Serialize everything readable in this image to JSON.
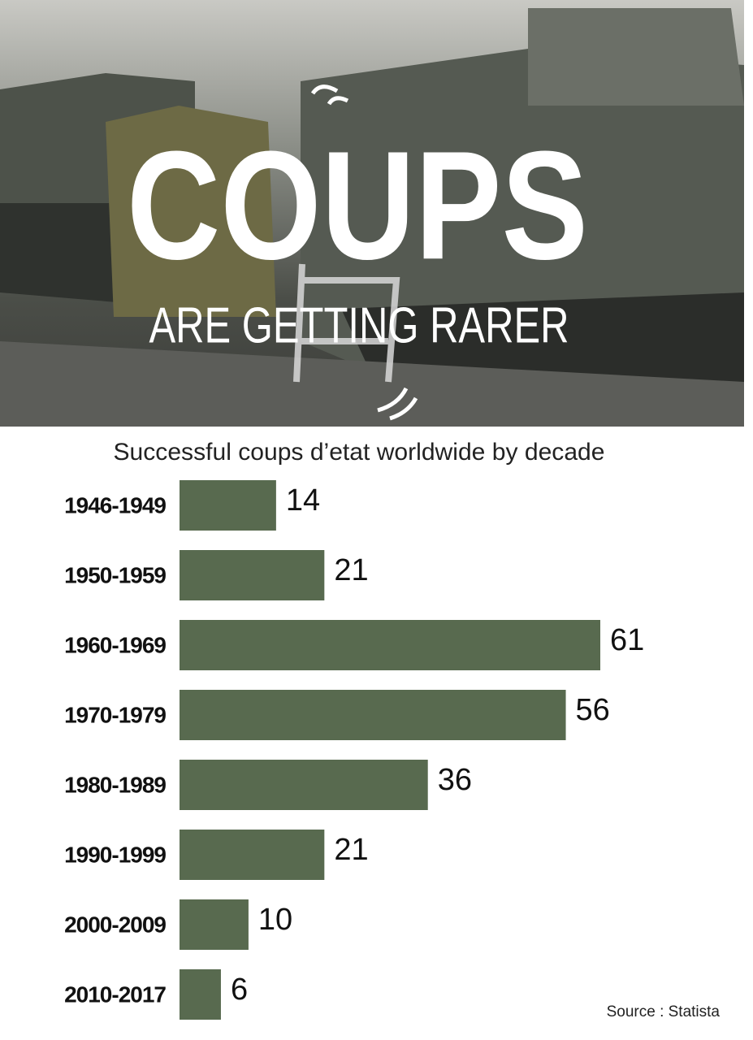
{
  "chart_data": {
    "type": "bar",
    "orientation": "horizontal",
    "title": "COUPS",
    "subtitle": "ARE GETTING RARER",
    "chart_title": "Successful coups d’etat worldwide by decade",
    "source": "Source : Statista",
    "categories": [
      "1946-1949",
      "1950-1959",
      "1960-1969",
      "1970-1979",
      "1980-1989",
      "1990-1999",
      "2000-2009",
      "2010-2017"
    ],
    "values": [
      14,
      21,
      61,
      56,
      36,
      21,
      10,
      6
    ],
    "color": "#586a4f"
  }
}
